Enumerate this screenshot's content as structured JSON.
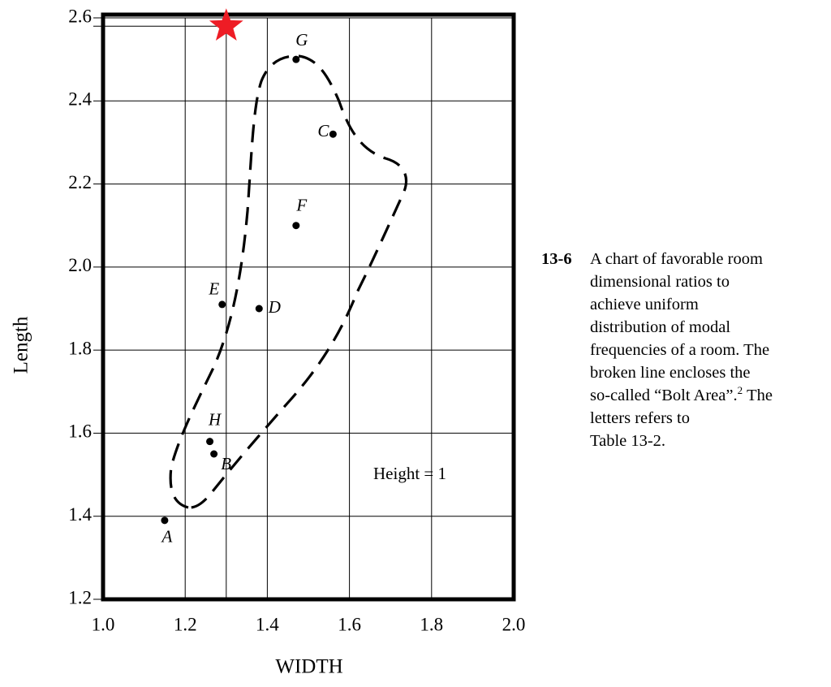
{
  "chart_data": {
    "type": "scatter",
    "x_label": "WIDTH",
    "y_label": "Length",
    "x": [
      1.15,
      1.27,
      1.56,
      1.38,
      1.29,
      1.47,
      1.47,
      1.26
    ],
    "values": [
      1.39,
      1.55,
      2.32,
      1.9,
      1.91,
      2.1,
      2.5,
      1.58
    ],
    "point_labels": [
      "A",
      "B",
      "C",
      "D",
      "E",
      "F",
      "G",
      "H"
    ],
    "color": "#000000",
    "highlight_point": {
      "x": 1.3,
      "y": 2.58,
      "color": "#ee1c25"
    },
    "xlim": [
      1.0,
      2.0
    ],
    "xticks": [
      {
        "value": 1.0,
        "label": "1.0"
      },
      1.2,
      1.4,
      1.6,
      1.8,
      {
        "value": 2.0,
        "label": "2.0"
      }
    ],
    "ylim": [
      1.2,
      2.6
    ],
    "yticks": [
      1.2,
      1.4,
      1.6,
      1.8,
      {
        "value": 2.0,
        "label": "2.0"
      },
      2.2,
      2.4,
      2.6
    ],
    "grid": true,
    "annotation": "Height = 1",
    "caption": {
      "number": "13-6",
      "lines": [
        [
          "A chart of favorable room"
        ],
        [
          "dimensional ratios to"
        ],
        [
          "achieve uniform"
        ],
        [
          "distribution of modal"
        ],
        [
          "frequencies of a room. The"
        ],
        [
          "broken line encloses the"
        ],
        [
          "so-called “Bolt Area”.",
          "2",
          "The"
        ],
        [
          "letters refers to"
        ],
        [
          "Table 13-2."
        ]
      ]
    }
  }
}
